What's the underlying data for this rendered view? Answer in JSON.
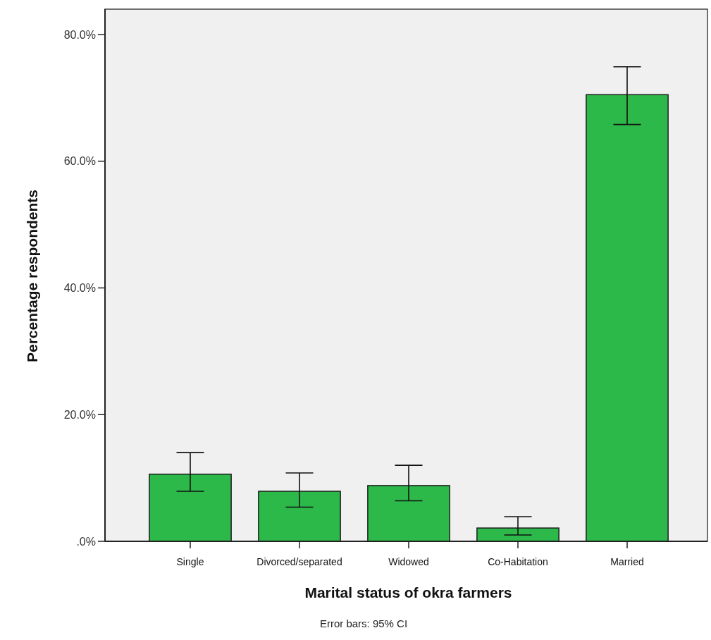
{
  "chart_data": {
    "type": "bar",
    "xlabel": "Marital status of okra farmers",
    "ylabel": "Percentage respondents",
    "annotations": [
      "Error bars: 95% CI"
    ],
    "categories": [
      "Single",
      "Divorced/separated",
      "Widowed",
      "Co-Habitation",
      "Married"
    ],
    "values": [
      10.6,
      7.9,
      8.8,
      2.1,
      70.5
    ],
    "errors": [
      [
        7.9,
        14.0
      ],
      [
        5.4,
        10.8
      ],
      [
        6.4,
        12.0
      ],
      [
        1.0,
        3.9
      ],
      [
        65.8,
        74.9
      ]
    ],
    "color": "#2db84a",
    "ylim": [
      0,
      84
    ],
    "yticks": [
      {
        "value": 0,
        "label": ".0%"
      },
      {
        "value": 20,
        "label": "20.0%"
      },
      {
        "value": 40,
        "label": "40.0%"
      },
      {
        "value": 60,
        "label": "60.0%"
      },
      {
        "value": 80,
        "label": "80.0%"
      }
    ]
  }
}
